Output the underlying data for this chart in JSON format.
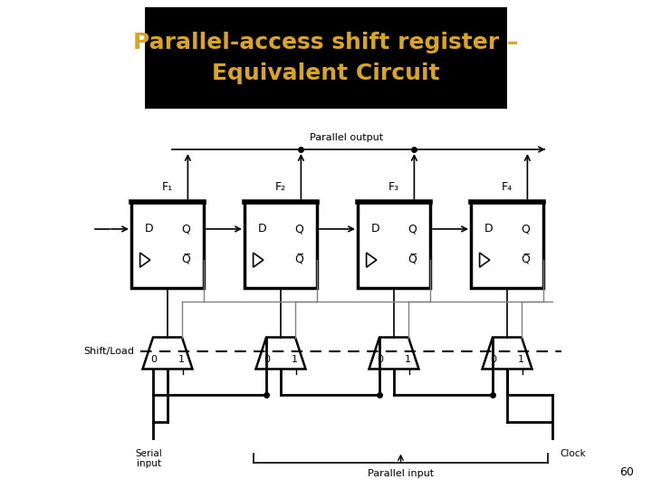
{
  "title_line1": "Parallel-access shift register –",
  "title_line2": "Equivalent Circuit",
  "title_bg_color": "#000000",
  "title_text_color": "#DAA520",
  "title_fontsize": 18,
  "bg_color": "#ffffff",
  "page_number": "60",
  "flip_flop_labels": [
    "F₁",
    "F₂",
    "F₃",
    "F₄"
  ],
  "shift_load_label": "Shift/Load",
  "parallel_output_label": "Parallel output",
  "parallel_input_label": "Parallel input",
  "serial_input_label": "Serial\ninput",
  "clock_label": "Clock"
}
